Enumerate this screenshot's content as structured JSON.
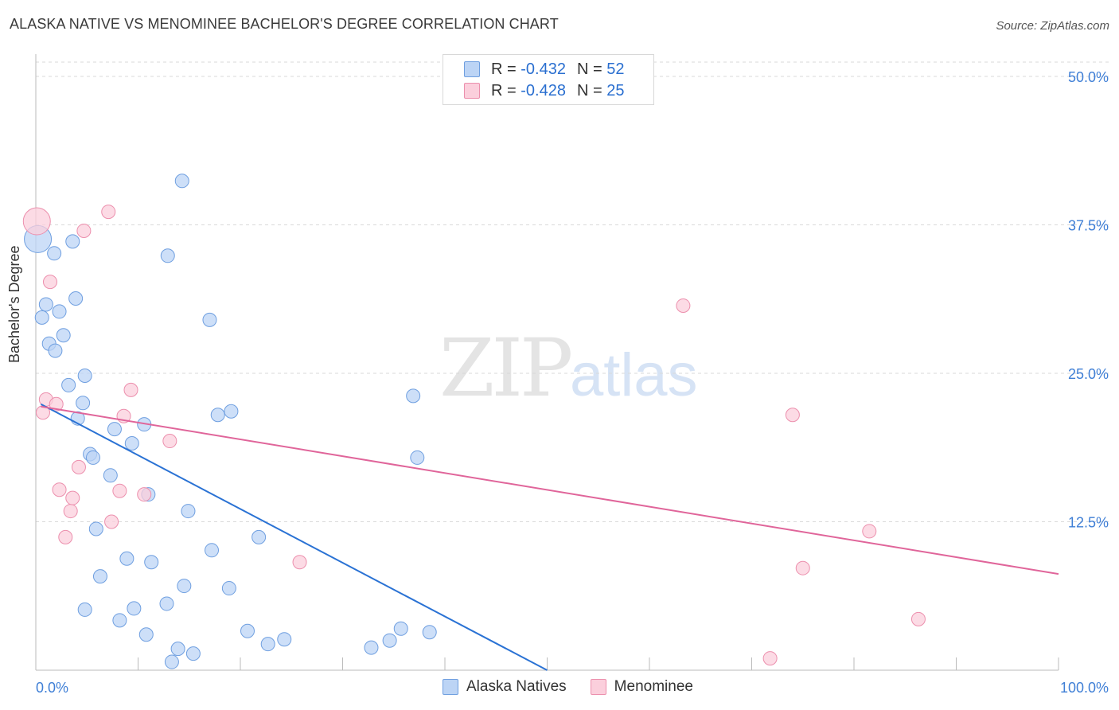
{
  "title": "ALASKA NATIVE VS MENOMINEE BACHELOR'S DEGREE CORRELATION CHART",
  "source": "Source: ZipAtlas.com",
  "watermark": {
    "zip": "ZIP",
    "atlas": "atlas"
  },
  "legend": {
    "r_label": "R =",
    "n_label": "N =",
    "rows": [
      {
        "r": "-0.432",
        "n": "52"
      },
      {
        "r": "-0.428",
        "n": "25"
      }
    ]
  },
  "colors": {
    "blue_fill": "#bcd4f5",
    "blue_stroke": "#6f9fe0",
    "blue_line": "#2a72d4",
    "pink_fill": "#fbcfdc",
    "pink_stroke": "#ec8fad",
    "pink_line": "#e0659a",
    "tick_label": "#3f7fd6"
  },
  "chart_data": {
    "type": "scatter",
    "ylabel": "Bachelor's Degree",
    "xlim": [
      0,
      100
    ],
    "ylim": [
      0,
      50
    ],
    "x_ticks": [
      "0.0%",
      "100.0%"
    ],
    "y_ticks": [
      {
        "v": 12.5,
        "label": "12.5%"
      },
      {
        "v": 25.0,
        "label": "25.0%"
      },
      {
        "v": 37.5,
        "label": "37.5%"
      },
      {
        "v": 50.0,
        "label": "50.0%"
      }
    ],
    "grid": true,
    "series": [
      {
        "name": "Alaska Natives",
        "color": "blue",
        "points": [
          [
            0.2,
            36.3
          ],
          [
            0.6,
            29.7
          ],
          [
            1.0,
            30.8
          ],
          [
            1.3,
            27.5
          ],
          [
            1.8,
            35.1
          ],
          [
            1.9,
            26.9
          ],
          [
            2.3,
            30.2
          ],
          [
            2.7,
            28.2
          ],
          [
            3.2,
            24.0
          ],
          [
            3.6,
            36.1
          ],
          [
            3.9,
            31.3
          ],
          [
            4.1,
            21.2
          ],
          [
            4.6,
            22.5
          ],
          [
            4.8,
            24.8
          ],
          [
            4.8,
            5.1
          ],
          [
            5.3,
            18.2
          ],
          [
            5.6,
            17.9
          ],
          [
            5.9,
            11.9
          ],
          [
            6.3,
            7.9
          ],
          [
            7.3,
            16.4
          ],
          [
            7.7,
            20.3
          ],
          [
            8.2,
            4.2
          ],
          [
            8.9,
            9.4
          ],
          [
            9.4,
            19.1
          ],
          [
            9.6,
            5.2
          ],
          [
            10.6,
            20.7
          ],
          [
            10.8,
            3.0
          ],
          [
            11.0,
            14.8
          ],
          [
            11.3,
            9.1
          ],
          [
            12.8,
            5.6
          ],
          [
            12.9,
            34.9
          ],
          [
            13.3,
            0.7
          ],
          [
            13.9,
            1.8
          ],
          [
            14.3,
            41.2
          ],
          [
            14.5,
            7.1
          ],
          [
            14.9,
            13.4
          ],
          [
            15.4,
            1.4
          ],
          [
            17.0,
            29.5
          ],
          [
            17.2,
            10.1
          ],
          [
            17.8,
            21.5
          ],
          [
            18.9,
            6.9
          ],
          [
            19.1,
            21.8
          ],
          [
            20.7,
            3.3
          ],
          [
            21.8,
            11.2
          ],
          [
            22.7,
            2.2
          ],
          [
            24.3,
            2.6
          ],
          [
            32.8,
            1.9
          ],
          [
            34.6,
            2.5
          ],
          [
            36.9,
            23.1
          ],
          [
            38.5,
            3.2
          ],
          [
            35.7,
            3.5
          ],
          [
            37.3,
            17.9
          ]
        ]
      },
      {
        "name": "Menominee",
        "color": "pink",
        "points": [
          [
            0.1,
            37.8
          ],
          [
            0.7,
            21.7
          ],
          [
            1.0,
            22.8
          ],
          [
            1.4,
            32.7
          ],
          [
            2.0,
            22.4
          ],
          [
            2.3,
            15.2
          ],
          [
            2.9,
            11.2
          ],
          [
            3.4,
            13.4
          ],
          [
            3.6,
            14.5
          ],
          [
            4.2,
            17.1
          ],
          [
            4.7,
            37.0
          ],
          [
            7.1,
            38.6
          ],
          [
            7.4,
            12.5
          ],
          [
            8.2,
            15.1
          ],
          [
            8.6,
            21.4
          ],
          [
            9.3,
            23.6
          ],
          [
            10.6,
            14.8
          ],
          [
            13.1,
            19.3
          ],
          [
            25.8,
            9.1
          ],
          [
            63.3,
            30.7
          ],
          [
            71.8,
            1.0
          ],
          [
            74.0,
            21.5
          ],
          [
            75.0,
            8.6
          ],
          [
            81.5,
            11.7
          ],
          [
            86.3,
            4.3
          ]
        ]
      }
    ],
    "trendlines": [
      {
        "series": "Alaska Natives",
        "x": [
          0.5,
          50.0
        ],
        "y": [
          22.4,
          0.0
        ]
      },
      {
        "series": "Menominee",
        "x": [
          0.5,
          100.0
        ],
        "y": [
          22.2,
          8.1
        ]
      }
    ]
  }
}
